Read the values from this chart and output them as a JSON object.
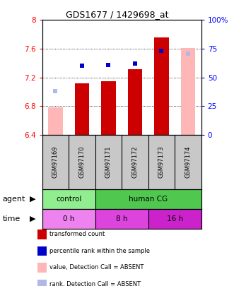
{
  "title": "GDS1677 / 1429698_at",
  "samples": [
    "GSM97169",
    "GSM97170",
    "GSM97171",
    "GSM97172",
    "GSM97173",
    "GSM97174"
  ],
  "bar_values": [
    null,
    7.12,
    7.15,
    7.32,
    7.76,
    null
  ],
  "bar_absent_values": [
    6.78,
    null,
    null,
    null,
    null,
    7.61
  ],
  "rank_present": [
    null,
    60,
    61,
    62,
    73,
    null
  ],
  "rank_absent": [
    38,
    null,
    null,
    null,
    null,
    71
  ],
  "ylim_left": [
    6.4,
    8.0
  ],
  "ylim_right": [
    0,
    100
  ],
  "yticks_left": [
    6.4,
    6.8,
    7.2,
    7.6,
    8.0
  ],
  "yticks_right": [
    0,
    25,
    50,
    75,
    100
  ],
  "ytick_labels_left": [
    "6.4",
    "6.8",
    "7.2",
    "7.6",
    "8"
  ],
  "ytick_labels_right": [
    "0",
    "25",
    "50",
    "75",
    "100%"
  ],
  "agent_groups": [
    {
      "label": "control",
      "span": [
        0,
        2
      ],
      "color": "#90ee90"
    },
    {
      "label": "human CG",
      "span": [
        2,
        6
      ],
      "color": "#50c850"
    }
  ],
  "time_groups": [
    {
      "label": "0 h",
      "span": [
        0,
        2
      ],
      "color": "#ee82ee"
    },
    {
      "label": "8 h",
      "span": [
        2,
        4
      ],
      "color": "#dd44dd"
    },
    {
      "label": "16 h",
      "span": [
        4,
        6
      ],
      "color": "#cc22cc"
    }
  ],
  "legend_items": [
    {
      "color": "#cc0000",
      "label": "transformed count"
    },
    {
      "color": "#0000cc",
      "label": "percentile rank within the sample"
    },
    {
      "color": "#ffb6b6",
      "label": "value, Detection Call = ABSENT"
    },
    {
      "color": "#b0b8e8",
      "label": "rank, Detection Call = ABSENT"
    }
  ],
  "bar_width": 0.55,
  "absent_bar_color": "#ffb6b6",
  "present_bar_color": "#cc0000",
  "absent_rank_color": "#b0b8e8",
  "present_rank_color": "#0000cc",
  "bar_base": 6.4
}
